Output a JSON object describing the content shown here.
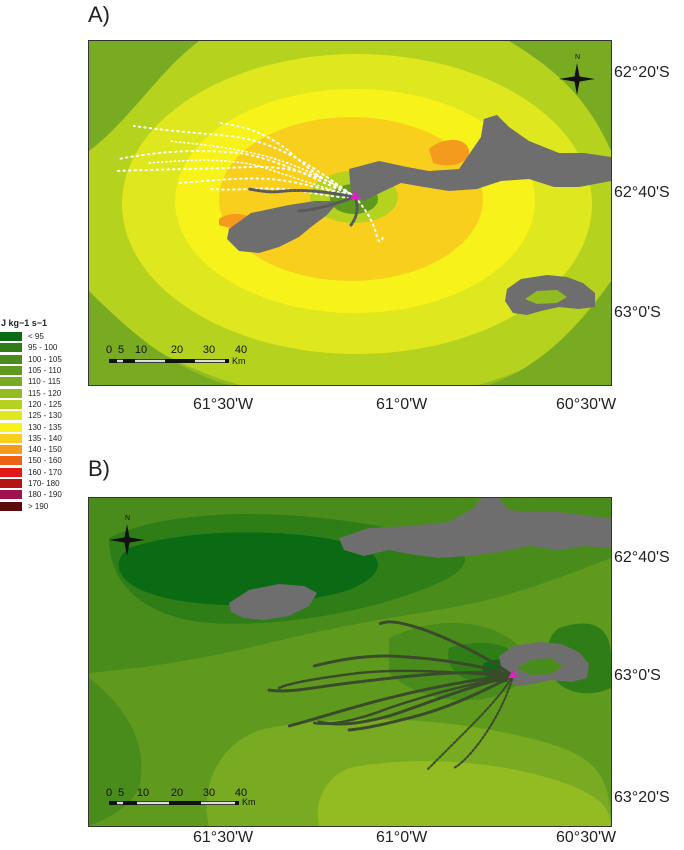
{
  "panels": [
    {
      "label": "A)",
      "lat_labels": [
        "62°20'S",
        "62°40'S",
        "63°0'S"
      ],
      "lon_labels": [
        "61°30'W",
        "61°0'W",
        "60°30'W"
      ],
      "scale_ticks": [
        "0",
        "5",
        "10",
        "20",
        "30",
        "40"
      ],
      "scale_unit": "Km",
      "north_label": "N"
    },
    {
      "label": "B)",
      "lat_labels": [
        "62°40'S",
        "63°0'S",
        "63°20'S"
      ],
      "lon_labels": [
        "61°30'W",
        "61°0'W",
        "60°30'W"
      ],
      "scale_ticks": [
        "0",
        "5",
        "10",
        "20",
        "30",
        "40"
      ],
      "scale_unit": "Km",
      "north_label": "N"
    }
  ],
  "legend": {
    "title": "J kg−1 s−1",
    "items": [
      {
        "label": "< 95",
        "color": "#0b6b14"
      },
      {
        "label": "95 - 100",
        "color": "#2f7d17"
      },
      {
        "label": "100 - 105",
        "color": "#4a8c1c"
      },
      {
        "label": "105 - 110",
        "color": "#5f9a1f"
      },
      {
        "label": "110 - 115",
        "color": "#78aa22"
      },
      {
        "label": "115 - 120",
        "color": "#93bb22"
      },
      {
        "label": "120 - 125",
        "color": "#b5d21e"
      },
      {
        "label": "125 - 130",
        "color": "#dfe81e"
      },
      {
        "label": "130 - 135",
        "color": "#f7f21a"
      },
      {
        "label": "135 - 140",
        "color": "#f9cf1e"
      },
      {
        "label": "140 - 150",
        "color": "#f49a1d"
      },
      {
        "label": "150 - 160",
        "color": "#ee6216"
      },
      {
        "label": "160 - 170",
        "color": "#e21717"
      },
      {
        "label": "170- 180",
        "color": "#b51414"
      },
      {
        "label": "180 - 190",
        "color": "#a0124e"
      },
      {
        "label": "> 190",
        "color": "#5a0a0a"
      }
    ]
  },
  "colors": {
    "land": "#6e6e6e",
    "tracks_a": "#ffffff",
    "tracks_b": "#3a4a2a",
    "colony": "#e020c0"
  }
}
